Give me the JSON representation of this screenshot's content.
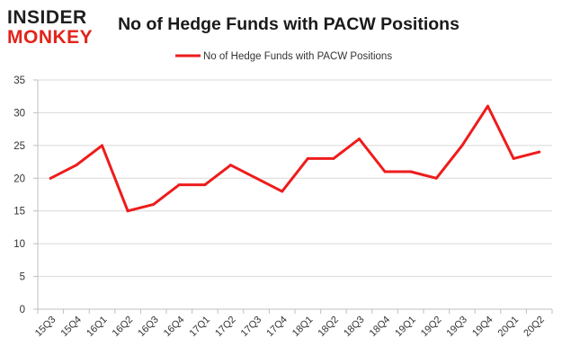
{
  "brand": {
    "logo_top": "INSIDER",
    "logo_bottom": "MONKEY"
  },
  "chart_data": {
    "type": "line",
    "title": "No of Hedge Funds with PACW Positions",
    "xlabel": "",
    "ylabel": "",
    "categories": [
      "15Q3",
      "15Q4",
      "16Q1",
      "16Q2",
      "16Q3",
      "16Q4",
      "17Q1",
      "17Q2",
      "17Q3",
      "17Q4",
      "18Q1",
      "18Q2",
      "18Q3",
      "18Q4",
      "19Q1",
      "19Q2",
      "19Q3",
      "19Q4",
      "20Q1",
      "20Q2"
    ],
    "series": [
      {
        "name": "No of Hedge Funds with PACW Positions",
        "values": [
          20,
          22,
          25,
          15,
          16,
          19,
          19,
          22,
          20,
          18,
          23,
          23,
          26,
          21,
          21,
          20,
          25,
          31,
          23,
          24
        ]
      }
    ],
    "ylim": [
      0,
      35
    ],
    "yticks": [
      0,
      5,
      10,
      15,
      20,
      25,
      30,
      35
    ],
    "grid": true,
    "legend_position": "top-center",
    "colors": {
      "series": "#ee1c1c",
      "grid": "#d9d9d9",
      "axis": "#bfbfbf"
    }
  }
}
